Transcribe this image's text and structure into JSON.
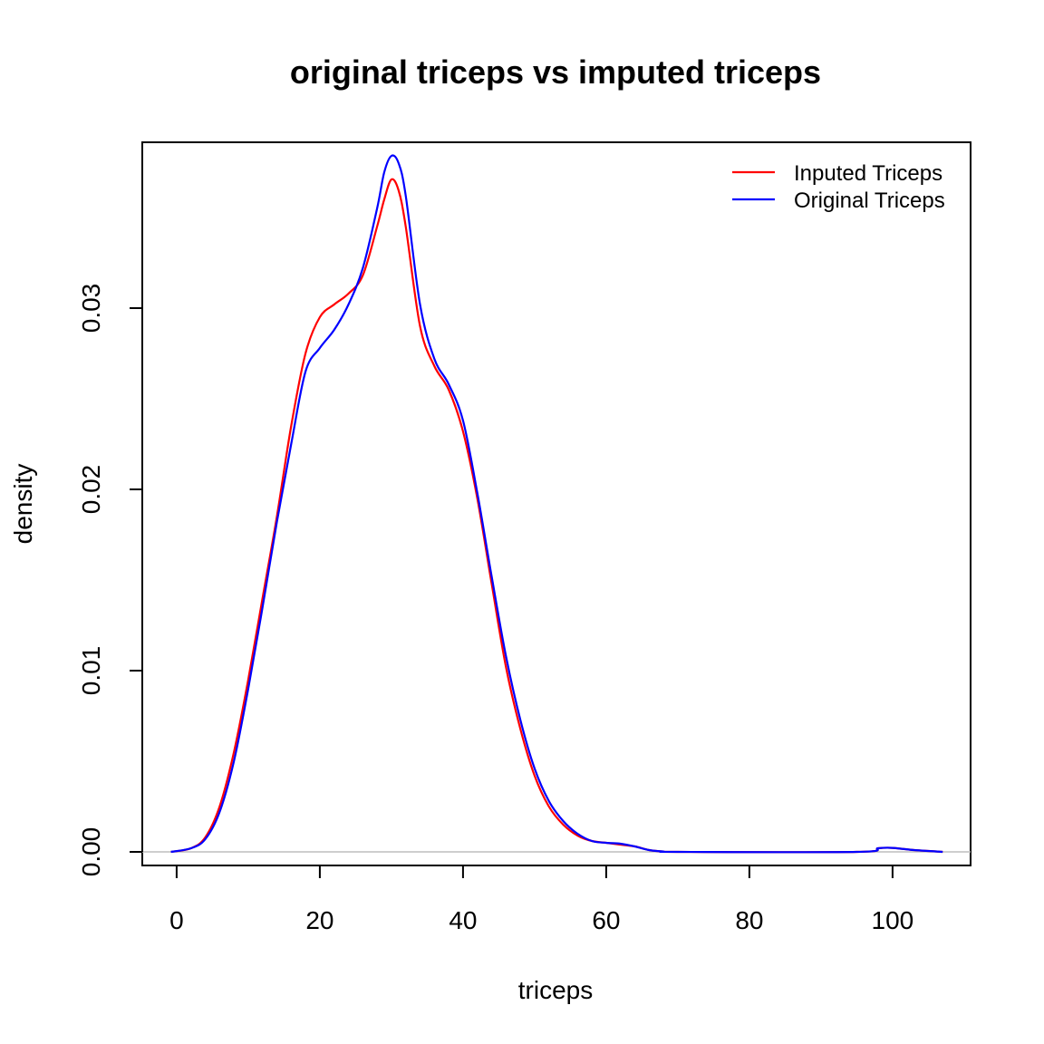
{
  "chart_data": {
    "type": "line",
    "title": "original triceps vs imputed triceps",
    "xlabel": "triceps",
    "ylabel": "density",
    "xlim": [
      -4.8,
      110.9
    ],
    "ylim": [
      -0.00075,
      0.03915
    ],
    "x_ticks": [
      0,
      20,
      40,
      60,
      80,
      100
    ],
    "y_ticks": [
      0.0,
      0.01,
      0.02,
      0.03
    ],
    "x_tick_labels": [
      "0",
      "20",
      "40",
      "60",
      "80",
      "100"
    ],
    "y_tick_labels": [
      "0.00",
      "0.01",
      "0.02",
      "0.03"
    ],
    "zero_line": {
      "value": 0,
      "color": "#bebebe"
    },
    "grid": false,
    "legend": {
      "position": "top-right",
      "entries": [
        {
          "label": "Inputed Triceps",
          "color": "#ff0000"
        },
        {
          "label": "Original Triceps",
          "color": "#0000ff"
        }
      ]
    },
    "series": [
      {
        "name": "Inputed Triceps",
        "color": "#ff0000",
        "points": [
          [
            -0.8,
            0
          ],
          [
            2,
            0.0002
          ],
          [
            4,
            0.0008
          ],
          [
            6,
            0.0025
          ],
          [
            8,
            0.0055
          ],
          [
            10,
            0.0095
          ],
          [
            12,
            0.014
          ],
          [
            14,
            0.0185
          ],
          [
            16,
            0.0235
          ],
          [
            18,
            0.0275
          ],
          [
            20,
            0.0295
          ],
          [
            22,
            0.0302
          ],
          [
            24,
            0.0308
          ],
          [
            26,
            0.0318
          ],
          [
            28,
            0.0345
          ],
          [
            29,
            0.036
          ],
          [
            30,
            0.0371
          ],
          [
            31,
            0.0365
          ],
          [
            32,
            0.0345
          ],
          [
            34,
            0.029
          ],
          [
            36,
            0.0268
          ],
          [
            38,
            0.0255
          ],
          [
            40,
            0.0232
          ],
          [
            42,
            0.0195
          ],
          [
            44,
            0.0148
          ],
          [
            46,
            0.0102
          ],
          [
            48,
            0.0068
          ],
          [
            50,
            0.0042
          ],
          [
            52,
            0.0025
          ],
          [
            54,
            0.0015
          ],
          [
            56,
            0.0009
          ],
          [
            58,
            0.0006
          ],
          [
            60,
            0.0005
          ],
          [
            62,
            0.0004
          ],
          [
            64,
            0.0003
          ],
          [
            66,
            0.0001
          ],
          [
            68,
            2e-05
          ],
          [
            70,
            0
          ],
          [
            95,
            0
          ],
          [
            98,
            0.0002
          ],
          [
            100,
            0.00022
          ],
          [
            103,
            0.0001
          ],
          [
            107,
            0
          ]
        ]
      },
      {
        "name": "Original Triceps",
        "color": "#0000ff",
        "points": [
          [
            -0.8,
            0
          ],
          [
            2,
            0.0002
          ],
          [
            4,
            0.0007
          ],
          [
            6,
            0.0022
          ],
          [
            8,
            0.005
          ],
          [
            10,
            0.009
          ],
          [
            12,
            0.0135
          ],
          [
            14,
            0.0182
          ],
          [
            16,
            0.0225
          ],
          [
            18,
            0.0265
          ],
          [
            20,
            0.0278
          ],
          [
            22,
            0.0288
          ],
          [
            24,
            0.0302
          ],
          [
            26,
            0.0322
          ],
          [
            28,
            0.0355
          ],
          [
            29,
            0.0375
          ],
          [
            30,
            0.0384
          ],
          [
            31,
            0.038
          ],
          [
            32,
            0.0362
          ],
          [
            34,
            0.0302
          ],
          [
            36,
            0.0272
          ],
          [
            38,
            0.0258
          ],
          [
            40,
            0.0238
          ],
          [
            42,
            0.0198
          ],
          [
            44,
            0.0152
          ],
          [
            46,
            0.0108
          ],
          [
            48,
            0.0073
          ],
          [
            50,
            0.0046
          ],
          [
            52,
            0.0028
          ],
          [
            54,
            0.0017
          ],
          [
            56,
            0.001
          ],
          [
            58,
            0.0006
          ],
          [
            60,
            0.0005
          ],
          [
            62,
            0.00045
          ],
          [
            64,
            0.0003
          ],
          [
            66,
            0.0001
          ],
          [
            68,
            2e-05
          ],
          [
            70,
            0
          ],
          [
            95,
            0
          ],
          [
            98,
            0.0002
          ],
          [
            100,
            0.00022
          ],
          [
            103,
            0.0001
          ],
          [
            107,
            0
          ]
        ]
      }
    ]
  }
}
